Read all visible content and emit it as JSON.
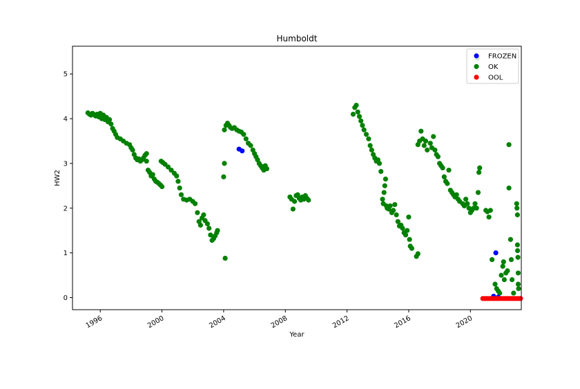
{
  "chart_data": {
    "type": "scatter",
    "title": "Humboldt",
    "xlabel": "Year",
    "ylabel": "HW2",
    "xlim": [
      1994.2,
      2023.3
    ],
    "ylim": [
      -0.27,
      5.62
    ],
    "xticks": [
      "1996",
      "2000",
      "2004",
      "2008",
      "2012",
      "2016",
      "2020"
    ],
    "yticks": [
      "0",
      "1",
      "2",
      "3",
      "4",
      "5"
    ],
    "grid": false,
    "legend_position": "top-right",
    "series": [
      {
        "name": "FROZEN",
        "color": "#0000ff",
        "points": [
          [
            2005.0,
            3.32
          ],
          [
            2005.2,
            3.28
          ],
          [
            2021.5,
            0.03
          ],
          [
            2021.65,
            1.0
          ],
          [
            2021.8,
            0.01
          ]
        ]
      },
      {
        "name": "OK",
        "color": "#008000",
        "points": [
          [
            1995.2,
            4.13
          ],
          [
            1995.3,
            4.1
          ],
          [
            1995.4,
            4.08
          ],
          [
            1995.5,
            4.12
          ],
          [
            1995.6,
            4.09
          ],
          [
            1995.7,
            4.06
          ],
          [
            1995.8,
            4.1
          ],
          [
            1995.9,
            4.04
          ],
          [
            1996.0,
            4.12
          ],
          [
            1996.1,
            4.0
          ],
          [
            1996.2,
            4.08
          ],
          [
            1996.3,
            3.98
          ],
          [
            1996.4,
            4.03
          ],
          [
            1996.5,
            3.93
          ],
          [
            1996.6,
            3.98
          ],
          [
            1996.7,
            3.88
          ],
          [
            1996.8,
            3.78
          ],
          [
            1996.9,
            3.72
          ],
          [
            1997.0,
            3.65
          ],
          [
            1997.1,
            3.58
          ],
          [
            1997.3,
            3.55
          ],
          [
            1997.5,
            3.5
          ],
          [
            1997.7,
            3.45
          ],
          [
            1997.9,
            3.42
          ],
          [
            1998.0,
            3.35
          ],
          [
            1998.1,
            3.3
          ],
          [
            1998.2,
            3.2
          ],
          [
            1998.3,
            3.12
          ],
          [
            1998.4,
            3.08
          ],
          [
            1998.5,
            3.1
          ],
          [
            1998.6,
            3.05
          ],
          [
            1998.7,
            3.08
          ],
          [
            1998.8,
            3.12
          ],
          [
            1998.9,
            3.18
          ],
          [
            1999.0,
            3.22
          ],
          [
            1999.0,
            3.05
          ],
          [
            1999.1,
            2.85
          ],
          [
            1999.2,
            2.8
          ],
          [
            1999.3,
            2.72
          ],
          [
            1999.4,
            2.75
          ],
          [
            1999.5,
            2.65
          ],
          [
            1999.6,
            2.6
          ],
          [
            1999.7,
            2.58
          ],
          [
            1999.8,
            2.55
          ],
          [
            1999.9,
            2.52
          ],
          [
            2000.0,
            2.48
          ],
          [
            1999.95,
            3.05
          ],
          [
            2000.05,
            3.02
          ],
          [
            2000.2,
            2.98
          ],
          [
            2000.4,
            2.92
          ],
          [
            2000.6,
            2.85
          ],
          [
            2000.8,
            2.78
          ],
          [
            2000.95,
            2.72
          ],
          [
            2001.05,
            2.6
          ],
          [
            2001.15,
            2.45
          ],
          [
            2001.25,
            2.3
          ],
          [
            2001.4,
            2.2
          ],
          [
            2001.6,
            2.18
          ],
          [
            2001.8,
            2.2
          ],
          [
            2002.0,
            2.15
          ],
          [
            2002.15,
            2.1
          ],
          [
            2002.3,
            1.9
          ],
          [
            2002.4,
            1.7
          ],
          [
            2002.5,
            1.62
          ],
          [
            2002.6,
            1.78
          ],
          [
            2002.7,
            1.85
          ],
          [
            2002.8,
            1.72
          ],
          [
            2002.95,
            1.65
          ],
          [
            2003.05,
            1.55
          ],
          [
            2003.15,
            1.4
          ],
          [
            2003.25,
            1.28
          ],
          [
            2003.35,
            1.32
          ],
          [
            2003.45,
            1.38
          ],
          [
            2003.55,
            1.45
          ],
          [
            2003.6,
            1.5
          ],
          [
            2004.0,
            2.7
          ],
          [
            2004.05,
            3.0
          ],
          [
            2004.1,
            0.88
          ],
          [
            2004.05,
            3.75
          ],
          [
            2004.15,
            3.85
          ],
          [
            2004.25,
            3.9
          ],
          [
            2004.35,
            3.85
          ],
          [
            2004.45,
            3.8
          ],
          [
            2004.55,
            3.78
          ],
          [
            2004.7,
            3.8
          ],
          [
            2004.85,
            3.75
          ],
          [
            2005.0,
            3.72
          ],
          [
            2005.15,
            3.7
          ],
          [
            2005.3,
            3.65
          ],
          [
            2005.45,
            3.55
          ],
          [
            2005.6,
            3.45
          ],
          [
            2005.75,
            3.4
          ],
          [
            2005.9,
            3.3
          ],
          [
            2006.0,
            3.22
          ],
          [
            2006.1,
            3.15
          ],
          [
            2006.2,
            3.08
          ],
          [
            2006.3,
            3.0
          ],
          [
            2006.4,
            2.95
          ],
          [
            2006.5,
            2.9
          ],
          [
            2006.6,
            2.85
          ],
          [
            2006.7,
            2.95
          ],
          [
            2006.8,
            2.88
          ],
          [
            2008.3,
            2.25
          ],
          [
            2008.4,
            2.2
          ],
          [
            2008.5,
            1.98
          ],
          [
            2008.6,
            2.15
          ],
          [
            2008.7,
            2.28
          ],
          [
            2008.8,
            2.3
          ],
          [
            2008.9,
            2.22
          ],
          [
            2009.0,
            2.18
          ],
          [
            2009.1,
            2.25
          ],
          [
            2009.2,
            2.2
          ],
          [
            2009.3,
            2.28
          ],
          [
            2009.4,
            2.22
          ],
          [
            2009.5,
            2.18
          ],
          [
            2012.4,
            4.1
          ],
          [
            2012.5,
            4.25
          ],
          [
            2012.6,
            4.3
          ],
          [
            2012.7,
            4.15
          ],
          [
            2012.8,
            4.05
          ],
          [
            2012.9,
            3.95
          ],
          [
            2013.0,
            3.85
          ],
          [
            2013.1,
            3.75
          ],
          [
            2013.25,
            3.65
          ],
          [
            2013.4,
            3.55
          ],
          [
            2013.5,
            3.4
          ],
          [
            2013.6,
            3.3
          ],
          [
            2013.7,
            3.2
          ],
          [
            2013.8,
            3.12
          ],
          [
            2013.9,
            3.05
          ],
          [
            2014.0,
            3.08
          ],
          [
            2014.1,
            3.0
          ],
          [
            2014.2,
            2.82
          ],
          [
            2014.3,
            2.2
          ],
          [
            2014.35,
            2.1
          ],
          [
            2014.4,
            2.35
          ],
          [
            2014.45,
            2.5
          ],
          [
            2014.5,
            2.65
          ],
          [
            2014.55,
            2.05
          ],
          [
            2014.6,
            2.0
          ],
          [
            2014.7,
            1.98
          ],
          [
            2014.8,
            2.05
          ],
          [
            2014.9,
            1.9
          ],
          [
            2015.0,
            1.95
          ],
          [
            2015.1,
            2.08
          ],
          [
            2015.2,
            1.85
          ],
          [
            2015.3,
            1.7
          ],
          [
            2015.4,
            1.6
          ],
          [
            2015.5,
            1.62
          ],
          [
            2015.6,
            1.55
          ],
          [
            2015.7,
            1.45
          ],
          [
            2015.8,
            1.4
          ],
          [
            2015.9,
            1.5
          ],
          [
            2016.0,
            1.8
          ],
          [
            2016.05,
            1.3
          ],
          [
            2016.1,
            1.15
          ],
          [
            2016.2,
            1.1
          ],
          [
            2016.5,
            0.92
          ],
          [
            2016.6,
            0.98
          ],
          [
            2016.6,
            3.42
          ],
          [
            2016.7,
            3.5
          ],
          [
            2016.8,
            3.72
          ],
          [
            2016.9,
            3.55
          ],
          [
            2017.0,
            3.4
          ],
          [
            2017.1,
            3.5
          ],
          [
            2017.2,
            3.3
          ],
          [
            2017.4,
            3.45
          ],
          [
            2017.5,
            3.35
          ],
          [
            2017.6,
            3.6
          ],
          [
            2017.7,
            3.3
          ],
          [
            2017.8,
            3.2
          ],
          [
            2017.9,
            3.15
          ],
          [
            2018.0,
            3.0
          ],
          [
            2018.1,
            2.95
          ],
          [
            2018.2,
            2.9
          ],
          [
            2018.3,
            2.7
          ],
          [
            2018.4,
            2.6
          ],
          [
            2018.5,
            2.55
          ],
          [
            2018.6,
            2.85
          ],
          [
            2018.7,
            2.4
          ],
          [
            2018.8,
            2.35
          ],
          [
            2018.9,
            2.3
          ],
          [
            2019.0,
            2.25
          ],
          [
            2019.1,
            2.3
          ],
          [
            2019.2,
            2.2
          ],
          [
            2019.3,
            2.15
          ],
          [
            2019.5,
            2.1
          ],
          [
            2019.6,
            2.05
          ],
          [
            2019.7,
            2.2
          ],
          [
            2019.8,
            2.1
          ],
          [
            2019.9,
            2.0
          ],
          [
            2020.0,
            1.9
          ],
          [
            2020.1,
            1.95
          ],
          [
            2020.2,
            2.0
          ],
          [
            2020.3,
            2.1
          ],
          [
            2020.4,
            2.0
          ],
          [
            2020.5,
            2.35
          ],
          [
            2020.55,
            2.8
          ],
          [
            2020.6,
            2.9
          ],
          [
            2020.45,
            5.35
          ],
          [
            2021.0,
            1.95
          ],
          [
            2021.1,
            1.92
          ],
          [
            2021.2,
            1.8
          ],
          [
            2021.3,
            1.95
          ],
          [
            2021.4,
            0.85
          ],
          [
            2021.6,
            0.3
          ],
          [
            2021.7,
            0.2
          ],
          [
            2021.8,
            0.15
          ],
          [
            2021.9,
            0.1
          ],
          [
            2022.0,
            0.5
          ],
          [
            2022.1,
            0.7
          ],
          [
            2022.15,
            0.8
          ],
          [
            2022.2,
            0.4
          ],
          [
            2022.3,
            0.55
          ],
          [
            2022.4,
            0.6
          ],
          [
            2022.5,
            3.42
          ],
          [
            2022.5,
            2.45
          ],
          [
            2022.6,
            1.3
          ],
          [
            2022.65,
            0.85
          ],
          [
            2022.7,
            0.4
          ],
          [
            2022.8,
            0.1
          ],
          [
            2023.0,
            2.1
          ],
          [
            2023.02,
            2.0
          ],
          [
            2023.05,
            1.85
          ],
          [
            2023.05,
            1.18
          ],
          [
            2023.06,
            1.05
          ],
          [
            2023.08,
            0.9
          ],
          [
            2023.1,
            0.55
          ],
          [
            2023.1,
            0.3
          ],
          [
            2023.12,
            0.2
          ]
        ]
      },
      {
        "name": "OOL",
        "color": "#ff0000",
        "points": [
          [
            2020.8,
            -0.02
          ],
          [
            2020.9,
            -0.02
          ],
          [
            2021.0,
            -0.02
          ],
          [
            2021.1,
            -0.02
          ],
          [
            2021.2,
            -0.02
          ],
          [
            2021.3,
            -0.02
          ],
          [
            2021.4,
            -0.02
          ],
          [
            2021.5,
            -0.02
          ],
          [
            2021.6,
            -0.02
          ],
          [
            2021.7,
            -0.02
          ],
          [
            2021.8,
            -0.02
          ],
          [
            2021.9,
            -0.02
          ],
          [
            2022.0,
            -0.02
          ],
          [
            2022.1,
            -0.02
          ],
          [
            2022.2,
            -0.02
          ],
          [
            2022.3,
            -0.02
          ],
          [
            2022.4,
            -0.02
          ],
          [
            2022.5,
            -0.02
          ],
          [
            2022.6,
            -0.02
          ],
          [
            2022.7,
            -0.02
          ],
          [
            2022.8,
            -0.02
          ],
          [
            2022.9,
            -0.02
          ],
          [
            2023.0,
            -0.02
          ],
          [
            2023.1,
            -0.02
          ],
          [
            2023.2,
            -0.02
          ],
          [
            2023.25,
            -0.02
          ]
        ]
      }
    ]
  }
}
